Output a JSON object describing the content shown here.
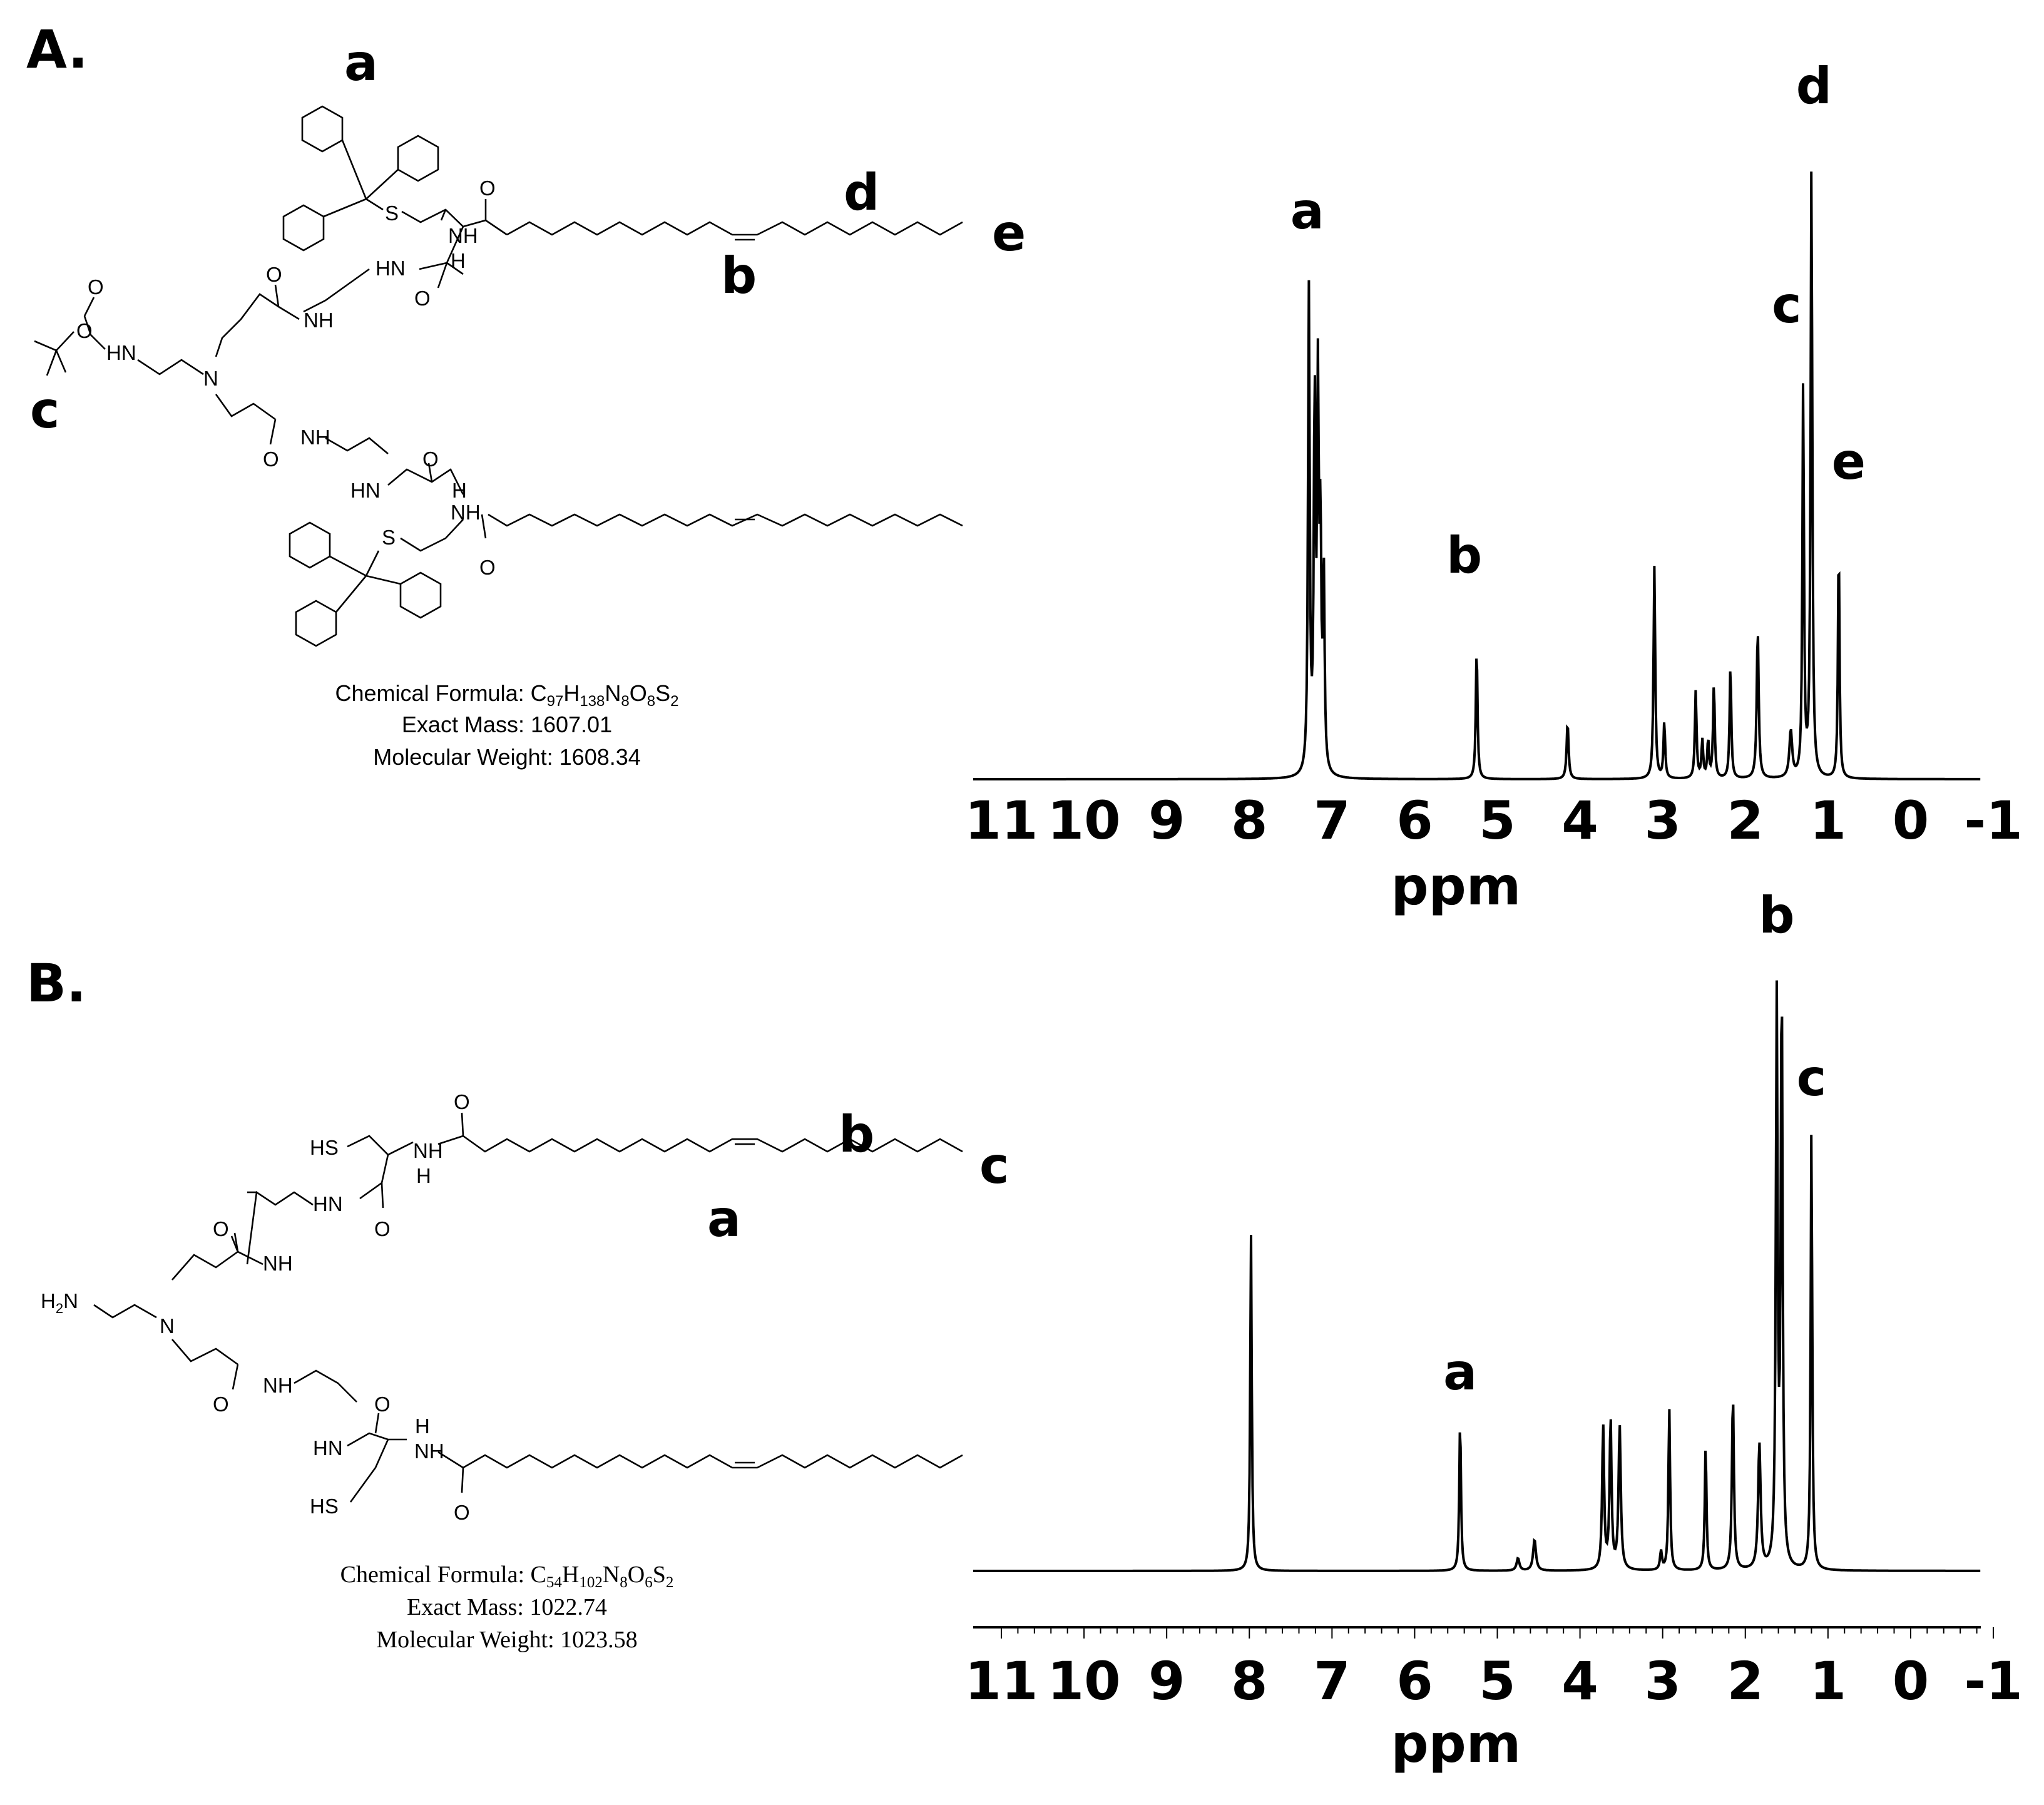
{
  "panels": [
    {
      "label": "A.",
      "structure_labels": [
        "a",
        "d",
        "e",
        "b",
        "c"
      ],
      "atoms": [
        "S",
        "S",
        "HN",
        "NH",
        "H",
        "NH",
        "HN",
        "N",
        "NH",
        "NH",
        "HN",
        "H",
        "O",
        "O",
        "O",
        "O",
        "O",
        "O",
        "O",
        "O"
      ],
      "formula": {
        "formula_prefix": "Chemical Formula: C",
        "formula_parts": [
          "97",
          "H",
          "138",
          "N",
          "8",
          "O",
          "8",
          "S",
          "2"
        ],
        "exact_mass": "Exact Mass: 1607.01",
        "molecular_weight": "Molecular Weight: 1608.34"
      }
    },
    {
      "label": "B.",
      "structure_labels": [
        "b",
        "c",
        "a"
      ],
      "atoms": [
        "HS",
        "HS",
        "HN",
        "NH",
        "H",
        "NH",
        "HN",
        "N",
        "NH",
        "NH",
        "HN",
        "H",
        "H",
        "2",
        "N",
        "O",
        "O",
        "O",
        "O",
        "O",
        "O"
      ],
      "formula": {
        "formula_prefix": "Chemical Formula: C",
        "formula_parts": [
          "54",
          "H",
          "102",
          "N",
          "8",
          "O",
          "6",
          "S",
          "2"
        ],
        "exact_mass": "Exact Mass: 1022.74",
        "molecular_weight": "Molecular Weight: 1023.58"
      }
    }
  ],
  "chart_data": [
    {
      "type": "line",
      "title": "",
      "xlabel": "ppm",
      "ylabel": "",
      "xlim": [
        11,
        -1
      ],
      "x_reversed": true,
      "xticks": [
        "11",
        "10",
        "9",
        "8",
        "7",
        "6",
        "5",
        "4",
        "3",
        "2",
        "1",
        "0",
        "-1"
      ],
      "minor_ticks": false,
      "grid": false,
      "peaks": [
        {
          "ppm": 7.28,
          "intensity": 0.77,
          "width": 0.012
        },
        {
          "ppm": 7.21,
          "intensity": 0.59,
          "width": 0.012
        },
        {
          "ppm": 7.17,
          "intensity": 0.59,
          "width": 0.012
        },
        {
          "ppm": 7.14,
          "intensity": 0.36,
          "width": 0.012
        },
        {
          "ppm": 7.1,
          "intensity": 0.31,
          "width": 0.012
        },
        {
          "ppm": 5.25,
          "intensity": 0.21,
          "width": 0.012
        },
        {
          "ppm": 4.15,
          "intensity": 0.09,
          "width": 0.014
        },
        {
          "ppm": 3.1,
          "intensity": 0.34,
          "width": 0.012
        },
        {
          "ppm": 2.98,
          "intensity": 0.09,
          "width": 0.012
        },
        {
          "ppm": 2.6,
          "intensity": 0.14,
          "width": 0.012
        },
        {
          "ppm": 2.52,
          "intensity": 0.06,
          "width": 0.012
        },
        {
          "ppm": 2.45,
          "intensity": 0.06,
          "width": 0.012
        },
        {
          "ppm": 2.38,
          "intensity": 0.15,
          "width": 0.012
        },
        {
          "ppm": 2.18,
          "intensity": 0.18,
          "width": 0.012
        },
        {
          "ppm": 1.85,
          "intensity": 0.24,
          "width": 0.014
        },
        {
          "ppm": 1.45,
          "intensity": 0.075,
          "width": 0.02
        },
        {
          "ppm": 1.3,
          "intensity": 0.63,
          "width": 0.011
        },
        {
          "ppm": 1.2,
          "intensity": 0.98,
          "width": 0.012
        },
        {
          "ppm": 0.87,
          "intensity": 0.38,
          "width": 0.011
        }
      ],
      "annotations": [
        {
          "text": "a",
          "ppm": 7.3,
          "height": 0.88
        },
        {
          "text": "b",
          "ppm": 5.4,
          "height": 0.33
        },
        {
          "text": "c",
          "ppm": 1.5,
          "height": 0.73
        },
        {
          "text": "d",
          "ppm": 1.17,
          "height": 1.08
        },
        {
          "text": "e",
          "ppm": 0.75,
          "height": 0.48
        }
      ]
    },
    {
      "type": "line",
      "title": "",
      "xlabel": "ppm",
      "ylabel": "",
      "xlim": [
        11,
        -1
      ],
      "x_reversed": true,
      "xticks": [
        "11",
        "10",
        "9",
        "8",
        "7",
        "6",
        "5",
        "4",
        "3",
        "2",
        "1",
        "0",
        "-1"
      ],
      "minor_ticks": true,
      "minor_step": 0.2,
      "grid": false,
      "peaks": [
        {
          "ppm": 7.98,
          "intensity": 0.54,
          "width": 0.011
        },
        {
          "ppm": 5.45,
          "intensity": 0.24,
          "width": 0.012
        },
        {
          "ppm": 4.75,
          "intensity": 0.02,
          "width": 0.02
        },
        {
          "ppm": 4.55,
          "intensity": 0.05,
          "width": 0.02
        },
        {
          "ppm": 3.72,
          "intensity": 0.23,
          "width": 0.014
        },
        {
          "ppm": 3.63,
          "intensity": 0.24,
          "width": 0.014
        },
        {
          "ppm": 3.52,
          "intensity": 0.23,
          "width": 0.016
        },
        {
          "ppm": 3.02,
          "intensity": 0.03,
          "width": 0.014
        },
        {
          "ppm": 2.92,
          "intensity": 0.26,
          "width": 0.012
        },
        {
          "ppm": 2.48,
          "intensity": 0.2,
          "width": 0.012
        },
        {
          "ppm": 2.15,
          "intensity": 0.28,
          "width": 0.014
        },
        {
          "ppm": 1.83,
          "intensity": 0.2,
          "width": 0.018
        },
        {
          "ppm": 1.62,
          "intensity": 0.9,
          "width": 0.013
        },
        {
          "ppm": 1.56,
          "intensity": 0.93,
          "width": 0.013
        },
        {
          "ppm": 1.2,
          "intensity": 0.71,
          "width": 0.011
        }
      ],
      "annotations": [
        {
          "text": "b",
          "ppm": 1.62,
          "height": 1.02
        },
        {
          "text": "c",
          "ppm": 1.2,
          "height": 0.76
        },
        {
          "text": "a",
          "ppm": 5.45,
          "height": 0.29
        }
      ]
    }
  ]
}
